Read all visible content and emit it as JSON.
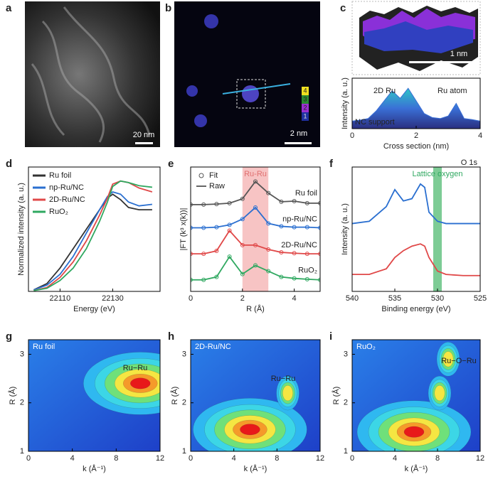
{
  "images": [
    {
      "panel": "a",
      "scale_bar": "20 nm"
    },
    {
      "panel": "b",
      "scale_bar": "2 nm",
      "legend": [
        "4",
        "3",
        "2",
        "1"
      ]
    },
    {
      "panel": "c",
      "scale_bar": "1 nm"
    }
  ],
  "chart_data": [
    {
      "type": "area",
      "xlabel": "Cross section (nm)",
      "ylabel": "Intensity (a. u.)",
      "x": [
        0,
        0.25,
        0.5,
        0.75,
        1,
        1.25,
        1.5,
        1.75,
        2,
        2.25,
        2.5,
        2.75,
        3,
        3.25,
        3.5,
        3.75,
        4
      ],
      "values": [
        0.15,
        0.17,
        0.2,
        0.35,
        0.55,
        0.75,
        0.6,
        0.8,
        0.55,
        0.3,
        0.22,
        0.2,
        0.25,
        0.5,
        0.2,
        0.18,
        0.15
      ],
      "color": "#3a6fd6",
      "xlim": [
        0,
        4
      ],
      "xticks": [
        0,
        2,
        4
      ],
      "ylim": [
        0,
        1
      ],
      "annotations": [
        "2D Ru",
        "Ru atom",
        "NC support"
      ]
    },
    {
      "panel": "d",
      "type": "line",
      "xlabel": "Energy (eV)",
      "ylabel": "Normalized intensity (a. u.)",
      "x": [
        22100,
        22105,
        22110,
        22115,
        22120,
        22125,
        22128,
        22130,
        22133,
        22136,
        22140,
        22145
      ],
      "series": [
        {
          "name": "Ru foil",
          "color": "#333333",
          "values": [
            0.02,
            0.1,
            0.3,
            0.55,
            0.8,
            1.05,
            1.2,
            1.25,
            1.18,
            1.08,
            1.05,
            1.05
          ]
        },
        {
          "name": "np-Ru/NC",
          "color": "#2a6fd0",
          "values": [
            0.02,
            0.08,
            0.22,
            0.45,
            0.75,
            1.05,
            1.22,
            1.28,
            1.25,
            1.15,
            1.1,
            1.12
          ]
        },
        {
          "name": "2D-Ru/NC",
          "color": "#e04848",
          "values": [
            0.01,
            0.05,
            0.18,
            0.38,
            0.65,
            0.98,
            1.2,
            1.38,
            1.42,
            1.4,
            1.33,
            1.28
          ]
        },
        {
          "name": "RuO₂",
          "color": "#2fa860",
          "values": [
            0.01,
            0.04,
            0.14,
            0.3,
            0.55,
            0.9,
            1.15,
            1.35,
            1.42,
            1.4,
            1.36,
            1.34
          ]
        }
      ],
      "xlim": [
        22098,
        22148
      ],
      "xticks": [
        22110,
        22130
      ],
      "ylim": [
        0,
        1.6
      ],
      "legend": "top-left"
    },
    {
      "panel": "e",
      "type": "line",
      "xlabel": "R (Å)",
      "ylabel": "|FT (k³ x(k))|",
      "markers": true,
      "legend_labels": [
        "Fit",
        "Raw"
      ],
      "x": [
        0,
        0.5,
        1,
        1.5,
        2,
        2.5,
        3,
        3.5,
        4,
        4.5,
        5
      ],
      "series": [
        {
          "name": "Ru foil",
          "color": "#555555",
          "values": [
            3,
            3,
            3.02,
            3.05,
            3.2,
            3.8,
            3.4,
            3.1,
            3.12,
            3.05,
            3.05
          ]
        },
        {
          "name": "np-Ru/NC",
          "color": "#2a6fd0",
          "values": [
            2.2,
            2.2,
            2.22,
            2.3,
            2.5,
            2.9,
            2.35,
            2.25,
            2.22,
            2.22,
            2.2
          ]
        },
        {
          "name": "2D-Ru/NC",
          "color": "#e04848",
          "values": [
            1.3,
            1.3,
            1.4,
            2.1,
            1.6,
            1.6,
            1.45,
            1.35,
            1.32,
            1.3,
            1.3
          ]
        },
        {
          "name": "RuO₂",
          "color": "#2fa860",
          "values": [
            0.4,
            0.4,
            0.5,
            1.2,
            0.6,
            0.9,
            0.7,
            0.5,
            0.45,
            0.42,
            0.4
          ]
        }
      ],
      "band": {
        "label": "Ru-Ru",
        "from": 2,
        "to": 3,
        "color": "#f5b5b5"
      },
      "xlim": [
        0,
        5
      ],
      "xticks": [
        0,
        2,
        4
      ],
      "ylim": [
        0,
        4.3
      ]
    },
    {
      "panel": "f",
      "type": "line",
      "title": "O 1s",
      "xlabel": "Binding energy (eV)",
      "ylabel": "Intensity (a. u.)",
      "x": [
        540,
        538,
        536,
        535,
        534,
        533,
        532,
        531.5,
        531,
        530,
        529,
        527,
        525
      ],
      "series": [
        {
          "color": "#2a6fd0",
          "values": [
            0.6,
            0.62,
            0.75,
            0.9,
            0.8,
            0.82,
            0.95,
            0.92,
            0.7,
            0.62,
            0.6,
            0.6,
            0.6
          ]
        },
        {
          "color": "#e04848",
          "values": [
            0.15,
            0.15,
            0.2,
            0.3,
            0.36,
            0.4,
            0.42,
            0.4,
            0.3,
            0.18,
            0.15,
            0.14,
            0.14
          ]
        }
      ],
      "band": {
        "label": "Lattice oxygen",
        "from": 530.5,
        "to": 529.5,
        "color": "#5cbf7a"
      },
      "xlim": [
        540,
        525
      ],
      "xticks": [
        540,
        535,
        530,
        525
      ],
      "ylim": [
        0,
        1.1
      ]
    },
    {
      "panel": "g",
      "type": "contour",
      "title": "Ru foil",
      "annotations": [
        "Ru−Ru"
      ],
      "xlabel": "k (Å⁻¹)",
      "ylabel": "R (Å)",
      "peaks": [
        {
          "x": 10.2,
          "y": 2.4
        }
      ],
      "xlim": [
        0,
        12
      ],
      "xticks": [
        0,
        4,
        8,
        12
      ],
      "ylim": [
        1,
        3.3
      ],
      "yticks": [
        1,
        2,
        3
      ]
    },
    {
      "panel": "h",
      "type": "contour",
      "title": "2D-Ru/NC",
      "annotations": [
        "Ru−Ru"
      ],
      "xlabel": "k (Å⁻¹)",
      "ylabel": "R (Å)",
      "peaks": [
        {
          "x": 5.5,
          "y": 1.45
        },
        {
          "x": 9,
          "y": 2.2
        }
      ],
      "xlim": [
        0,
        12
      ],
      "xticks": [
        0,
        4,
        8,
        12
      ],
      "ylim": [
        1,
        3.3
      ],
      "yticks": [
        1,
        2,
        3
      ]
    },
    {
      "panel": "i",
      "type": "contour",
      "title": "RuO₂",
      "annotations": [
        "Ru−O−Ru"
      ],
      "xlabel": "k (Å⁻¹)",
      "ylabel": "R (Å)",
      "peaks": [
        {
          "x": 5.8,
          "y": 1.4
        },
        {
          "x": 8.2,
          "y": 2.2
        },
        {
          "x": 9,
          "y": 2.9
        }
      ],
      "xlim": [
        0,
        12
      ],
      "xticks": [
        0,
        4,
        8,
        12
      ],
      "ylim": [
        1,
        3.3
      ],
      "yticks": [
        1,
        2,
        3
      ]
    }
  ]
}
